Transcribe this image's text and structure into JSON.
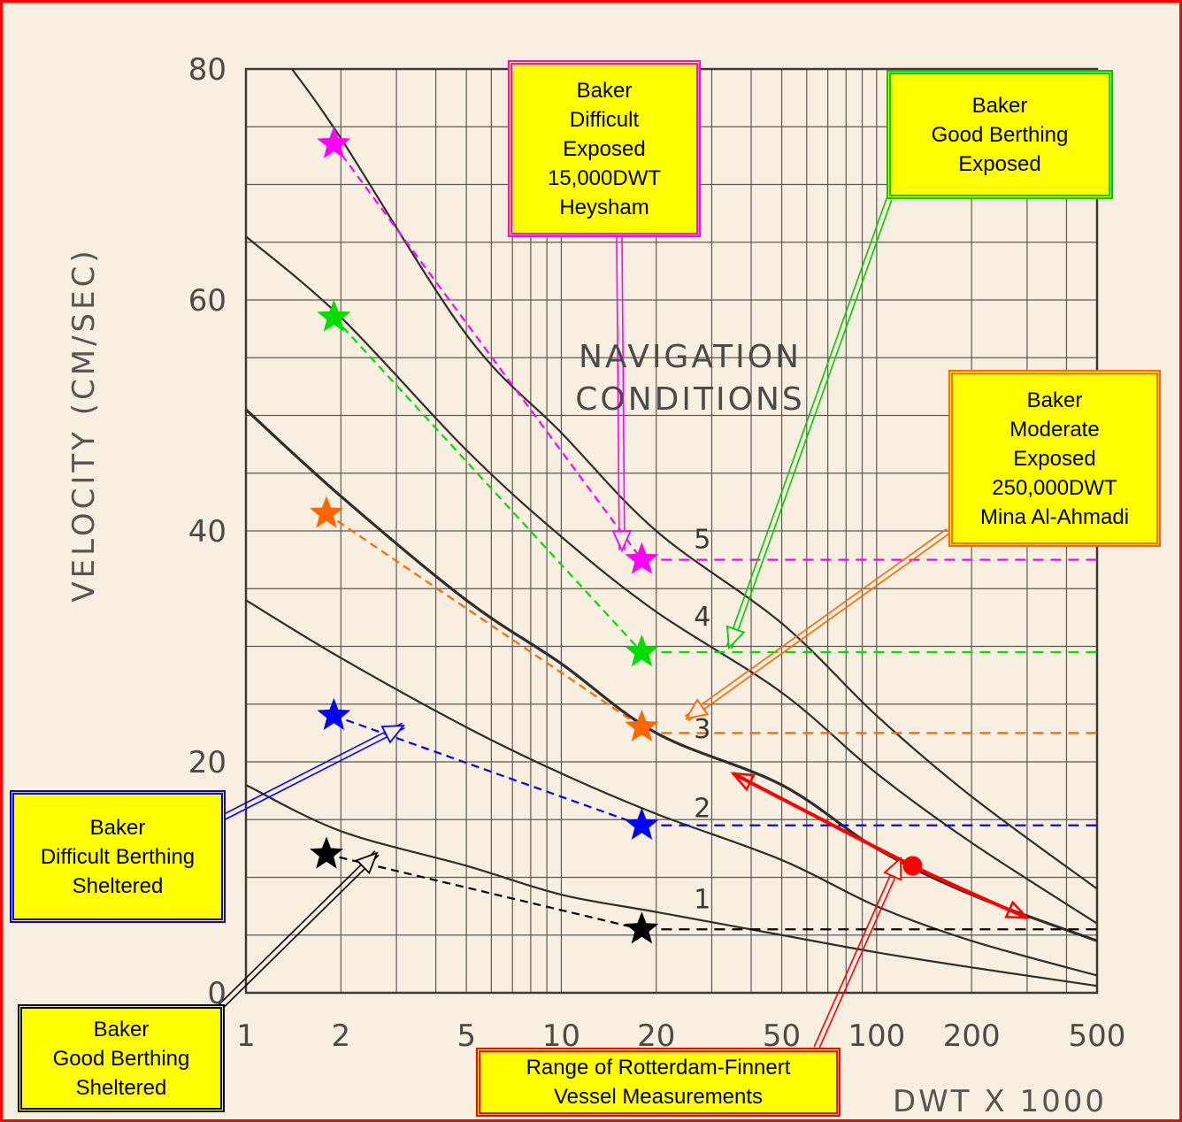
{
  "chart_data": {
    "type": "line",
    "xlabel": "DWT x 1000",
    "ylabel": "VELOCITY (CM/SEC)",
    "x_scale": "log",
    "xlim": [
      1,
      500
    ],
    "ylim": [
      0,
      80
    ],
    "x_ticks": [
      1,
      2,
      5,
      10,
      20,
      50,
      100,
      200,
      500
    ],
    "y_ticks": [
      0,
      20,
      40,
      60,
      80
    ],
    "grid": true,
    "annotation": [
      "NAVIGATION",
      "CONDITIONS"
    ],
    "series": [
      {
        "name": "1",
        "x": [
          1,
          2,
          5,
          10,
          20,
          50,
          100,
          200,
          500
        ],
        "y": [
          18,
          14,
          11,
          8.5,
          7,
          5,
          3.5,
          2.2,
          0.6
        ]
      },
      {
        "name": "2",
        "x": [
          1,
          2,
          5,
          10,
          20,
          50,
          100,
          200,
          500
        ],
        "y": [
          34,
          29,
          23,
          19,
          15.5,
          11.5,
          7.5,
          4.5,
          1.5
        ]
      },
      {
        "name": "3",
        "x": [
          1,
          2,
          5,
          10,
          20,
          50,
          100,
          200,
          500
        ],
        "y": [
          50.5,
          43,
          34,
          28.5,
          22.5,
          18,
          12.5,
          8.5,
          4.5
        ]
      },
      {
        "name": "4",
        "x": [
          1,
          2,
          5,
          10,
          20,
          50,
          100,
          200,
          500
        ],
        "y": [
          65.5,
          58.5,
          47,
          39.5,
          33,
          26,
          19,
          13,
          6
        ]
      },
      {
        "name": "5",
        "x": [
          1.4,
          2,
          5,
          10,
          20,
          50,
          100,
          200,
          500
        ],
        "y": [
          80,
          74,
          57,
          48.5,
          40,
          32,
          24,
          17,
          9
        ]
      }
    ],
    "stars": [
      {
        "color": "#ff00ff",
        "points": [
          [
            1.9,
            73.5
          ],
          [
            18,
            37.5
          ]
        ],
        "ext_y": 37.5
      },
      {
        "color": "#00dd00",
        "points": [
          [
            1.9,
            58.5
          ],
          [
            18,
            29.5
          ]
        ],
        "ext_y": 29.5
      },
      {
        "color": "#ff6600",
        "points": [
          [
            1.8,
            41.5
          ],
          [
            18,
            23
          ]
        ],
        "ext_y": 22.5
      },
      {
        "color": "#0000ff",
        "points": [
          [
            1.9,
            24
          ],
          [
            18,
            14.5
          ]
        ],
        "ext_y": 14.5
      },
      {
        "color": "#000000",
        "points": [
          [
            1.8,
            12
          ],
          [
            18,
            5.5
          ]
        ],
        "ext_y": 5.5
      }
    ],
    "range_measurements": {
      "color": "#ff0000",
      "x": [
        35,
        130,
        300
      ],
      "y": [
        19,
        11,
        6.5
      ]
    }
  },
  "callouts": {
    "magenta": {
      "lines": [
        "Baker",
        "Difficult",
        "Exposed",
        "15,000DWT",
        "Heysham"
      ],
      "border": "#ff00ff"
    },
    "green": {
      "lines": [
        "Baker",
        "Good Berthing",
        "Exposed"
      ],
      "border": "#00cc00"
    },
    "orange": {
      "lines": [
        "Baker",
        "Moderate",
        "Exposed",
        "250,000DWT",
        "Mina Al-Ahmadi"
      ],
      "border": "#ff6600"
    },
    "blue": {
      "lines": [
        "Baker",
        "Difficult Berthing",
        "Sheltered"
      ],
      "border": "#0000ff"
    },
    "black": {
      "lines": [
        "Baker",
        "Good Berthing",
        "Sheltered"
      ],
      "border": "#000000"
    },
    "red": {
      "lines": [
        "Range of Rotterdam-Finnert",
        "Vessel Measurements"
      ],
      "border": "#ff0000"
    }
  }
}
